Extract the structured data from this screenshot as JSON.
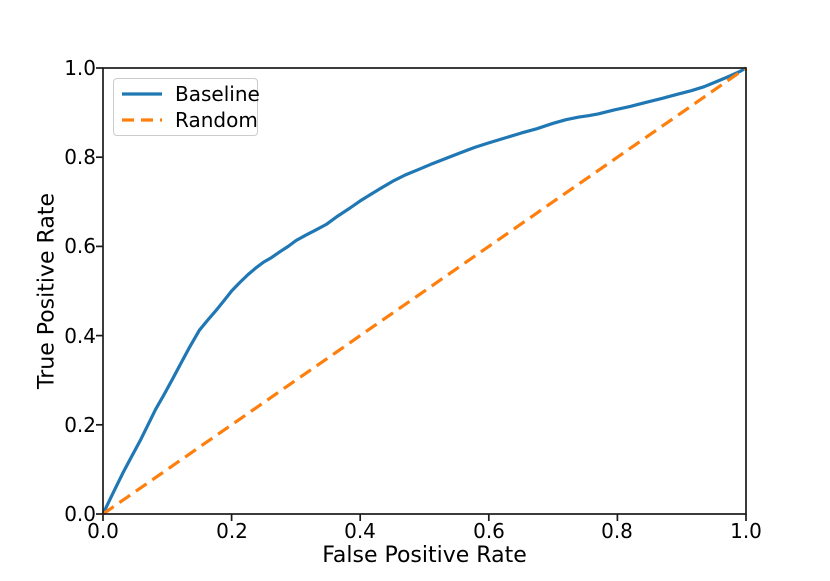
{
  "figure": {
    "background_color": "#ffffff",
    "frame_color": "#1a1a1a"
  },
  "legend": {
    "entries": [
      {
        "label": "Baseline",
        "color": "#1f77b4",
        "line_style": "solid"
      },
      {
        "label": "Random",
        "color": "#ff7f0e",
        "line_style": "dashed"
      }
    ]
  },
  "chart_data": {
    "type": "line",
    "title": "",
    "xlabel": "False Positive Rate",
    "ylabel": "True Positive Rate",
    "xlim": [
      0.0,
      1.0
    ],
    "ylim": [
      0.0,
      1.0
    ],
    "x_ticks": [
      0.0,
      0.2,
      0.4,
      0.6,
      0.8,
      1.0
    ],
    "y_ticks": [
      0.0,
      0.2,
      0.4,
      0.6,
      0.8,
      1.0
    ],
    "x_tick_labels": [
      "0.0",
      "0.2",
      "0.4",
      "0.6",
      "0.8",
      "1.0"
    ],
    "y_tick_labels": [
      "0.0",
      "0.2",
      "0.4",
      "0.6",
      "0.8",
      "1.0"
    ],
    "grid": false,
    "legend_position": "upper left",
    "series": [
      {
        "name": "Baseline",
        "color": "#1f77b4",
        "line_style": "solid",
        "linewidth": 3.2,
        "points": [
          [
            0.0,
            0.0
          ],
          [
            0.01,
            0.03
          ],
          [
            0.02,
            0.06
          ],
          [
            0.032,
            0.095
          ],
          [
            0.045,
            0.13
          ],
          [
            0.058,
            0.165
          ],
          [
            0.07,
            0.2
          ],
          [
            0.082,
            0.235
          ],
          [
            0.095,
            0.268
          ],
          [
            0.108,
            0.302
          ],
          [
            0.12,
            0.335
          ],
          [
            0.135,
            0.375
          ],
          [
            0.15,
            0.412
          ],
          [
            0.163,
            0.435
          ],
          [
            0.175,
            0.455
          ],
          [
            0.188,
            0.478
          ],
          [
            0.2,
            0.5
          ],
          [
            0.212,
            0.518
          ],
          [
            0.225,
            0.536
          ],
          [
            0.238,
            0.552
          ],
          [
            0.25,
            0.565
          ],
          [
            0.262,
            0.575
          ],
          [
            0.275,
            0.588
          ],
          [
            0.288,
            0.6
          ],
          [
            0.3,
            0.613
          ],
          [
            0.315,
            0.625
          ],
          [
            0.33,
            0.636
          ],
          [
            0.348,
            0.65
          ],
          [
            0.365,
            0.668
          ],
          [
            0.383,
            0.685
          ],
          [
            0.4,
            0.702
          ],
          [
            0.418,
            0.718
          ],
          [
            0.435,
            0.733
          ],
          [
            0.453,
            0.748
          ],
          [
            0.47,
            0.76
          ],
          [
            0.49,
            0.772
          ],
          [
            0.51,
            0.784
          ],
          [
            0.533,
            0.797
          ],
          [
            0.556,
            0.81
          ],
          [
            0.578,
            0.822
          ],
          [
            0.6,
            0.832
          ],
          [
            0.625,
            0.843
          ],
          [
            0.65,
            0.854
          ],
          [
            0.675,
            0.864
          ],
          [
            0.7,
            0.876
          ],
          [
            0.72,
            0.884
          ],
          [
            0.74,
            0.89
          ],
          [
            0.755,
            0.893
          ],
          [
            0.77,
            0.897
          ],
          [
            0.795,
            0.906
          ],
          [
            0.82,
            0.914
          ],
          [
            0.845,
            0.923
          ],
          [
            0.87,
            0.932
          ],
          [
            0.893,
            0.941
          ],
          [
            0.915,
            0.949
          ],
          [
            0.935,
            0.958
          ],
          [
            0.955,
            0.97
          ],
          [
            0.975,
            0.982
          ],
          [
            0.99,
            0.992
          ],
          [
            1.0,
            1.0
          ]
        ]
      },
      {
        "name": "Random",
        "color": "#ff7f0e",
        "line_style": "dashed",
        "linewidth": 3.2,
        "points": [
          [
            0.0,
            0.0
          ],
          [
            1.0,
            1.0
          ]
        ]
      }
    ]
  }
}
